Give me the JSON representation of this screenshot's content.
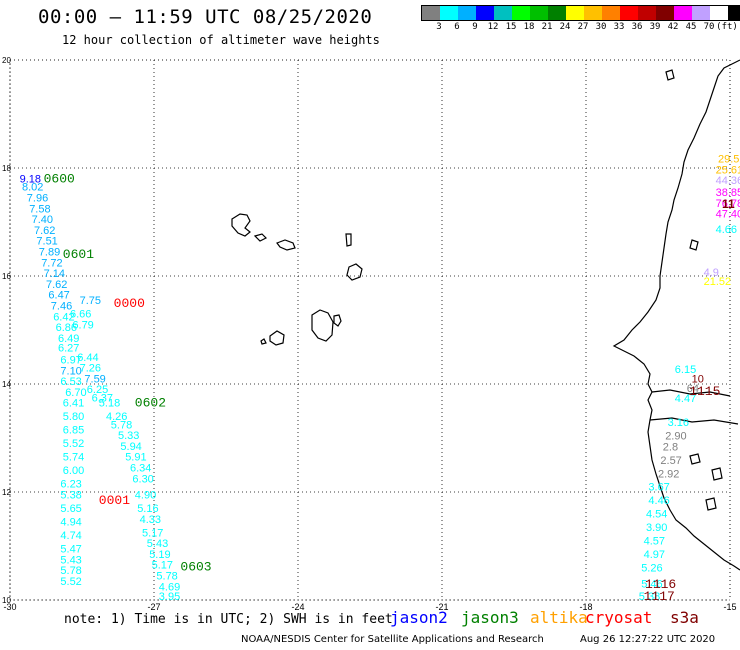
{
  "header": {
    "title": "00:00 – 11:59 UTC 08/25/2020",
    "subtitle": "12 hour collection of altimeter wave heights"
  },
  "legend": {
    "colors": [
      "#808080",
      "#00ffff",
      "#00b0ff",
      "#0000ff",
      "#00c0c0",
      "#00ff00",
      "#00c000",
      "#008000",
      "#ffff00",
      "#ffc000",
      "#ff8000",
      "#ff0000",
      "#c00000",
      "#800000",
      "#ff00ff",
      "#c0a0ff",
      "#ffffff",
      "#000000"
    ],
    "labels": [
      "3",
      "6",
      "9",
      "12",
      "15",
      "18",
      "21",
      "24",
      "27",
      "30",
      "33",
      "36",
      "39",
      "42",
      "45",
      "70",
      "(ft)"
    ]
  },
  "map": {
    "x_ticks": [
      "-30",
      "-27",
      "-24",
      "-21",
      "-18",
      "-15"
    ],
    "y_ticks": [
      "20",
      "18",
      "16",
      "14",
      "12",
      "10"
    ],
    "lon_range": [
      -30,
      -15
    ],
    "lat_range": [
      10,
      20
    ]
  },
  "time_labels": [
    {
      "text": "0600",
      "color": "#008000",
      "lon": -29.3,
      "lat": 17.73
    },
    {
      "text": "0601",
      "color": "#008000",
      "lon": -28.9,
      "lat": 16.33
    },
    {
      "text": "0000",
      "color": "#ff0000",
      "lon": -27.84,
      "lat": 15.43
    },
    {
      "text": "0602",
      "color": "#008000",
      "lon": -27.4,
      "lat": 13.58
    },
    {
      "text": "0001",
      "color": "#ff0000",
      "lon": -28.15,
      "lat": 11.78
    },
    {
      "text": "0603",
      "color": "#008000",
      "lon": -26.45,
      "lat": 10.55
    },
    {
      "text": "1115",
      "color": "#800000",
      "lon": -15.85,
      "lat": 13.8
    },
    {
      "text": "1116",
      "color": "#800000",
      "lon": -16.77,
      "lat": 10.22
    },
    {
      "text": "1117",
      "color": "#800000",
      "lon": -16.8,
      "lat": 10.0
    }
  ],
  "wave_labels": [
    {
      "v": "9.18",
      "c": "#0000ff",
      "lon": -29.8,
      "lat": 17.73
    },
    {
      "v": "8.02",
      "c": "#00b0ff",
      "lon": -29.75,
      "lat": 17.58
    },
    {
      "v": "7.96",
      "c": "#00b0ff",
      "lon": -29.65,
      "lat": 17.38
    },
    {
      "v": "7.58",
      "c": "#00b0ff",
      "lon": -29.6,
      "lat": 17.18
    },
    {
      "v": "7.40",
      "c": "#00b0ff",
      "lon": -29.55,
      "lat": 16.98
    },
    {
      "v": "7.62",
      "c": "#00b0ff",
      "lon": -29.5,
      "lat": 16.78
    },
    {
      "v": "7.51",
      "c": "#00b0ff",
      "lon": -29.45,
      "lat": 16.58
    },
    {
      "v": "7.89",
      "c": "#00b0ff",
      "lon": -29.4,
      "lat": 16.38
    },
    {
      "v": "7.72",
      "c": "#00b0ff",
      "lon": -29.35,
      "lat": 16.18
    },
    {
      "v": "7.14",
      "c": "#00b0ff",
      "lon": -29.3,
      "lat": 15.98
    },
    {
      "v": "7.62",
      "c": "#00b0ff",
      "lon": -29.25,
      "lat": 15.78
    },
    {
      "v": "6.47",
      "c": "#00b0ff",
      "lon": -29.2,
      "lat": 15.58
    },
    {
      "v": "7.75",
      "c": "#00b0ff",
      "lon": -28.55,
      "lat": 15.48
    },
    {
      "v": "7.46",
      "c": "#00b0ff",
      "lon": -29.15,
      "lat": 15.38
    },
    {
      "v": "6.66",
      "c": "#00ffff",
      "lon": -28.75,
      "lat": 15.23
    },
    {
      "v": "6.42",
      "c": "#00ffff",
      "lon": -29.1,
      "lat": 15.18
    },
    {
      "v": "6.79",
      "c": "#00ffff",
      "lon": -28.7,
      "lat": 15.03
    },
    {
      "v": "6.86",
      "c": "#00ffff",
      "lon": -29.05,
      "lat": 14.98
    },
    {
      "v": "6.49",
      "c": "#00ffff",
      "lon": -29.0,
      "lat": 14.78
    },
    {
      "v": "6.27",
      "c": "#00ffff",
      "lon": -29.0,
      "lat": 14.6
    },
    {
      "v": "6.44",
      "c": "#00ffff",
      "lon": -28.6,
      "lat": 14.43
    },
    {
      "v": "6.97",
      "c": "#00ffff",
      "lon": -28.95,
      "lat": 14.38
    },
    {
      "v": "7.10",
      "c": "#00b0ff",
      "lon": -28.95,
      "lat": 14.18
    },
    {
      "v": "7.26",
      "c": "#00ffff",
      "lon": -28.55,
      "lat": 14.23
    },
    {
      "v": "7.59",
      "c": "#00b0ff",
      "lon": -28.45,
      "lat": 14.03
    },
    {
      "v": "6.53",
      "c": "#00ffff",
      "lon": -28.95,
      "lat": 13.98
    },
    {
      "v": "6.25",
      "c": "#00ffff",
      "lon": -28.4,
      "lat": 13.83
    },
    {
      "v": "6.70",
      "c": "#00ffff",
      "lon": -28.85,
      "lat": 13.78
    },
    {
      "v": "6.37",
      "c": "#00ffff",
      "lon": -28.3,
      "lat": 13.68
    },
    {
      "v": "6.41",
      "c": "#00ffff",
      "lon": -28.9,
      "lat": 13.58
    },
    {
      "v": "5.18",
      "c": "#00ffff",
      "lon": -28.15,
      "lat": 13.58
    },
    {
      "v": "5.80",
      "c": "#00ffff",
      "lon": -28.9,
      "lat": 13.33
    },
    {
      "v": "4.26",
      "c": "#00ffff",
      "lon": -28.0,
      "lat": 13.33
    },
    {
      "v": "6.85",
      "c": "#00ffff",
      "lon": -28.9,
      "lat": 13.08
    },
    {
      "v": "5.78",
      "c": "#00ffff",
      "lon": -27.9,
      "lat": 13.18
    },
    {
      "v": "5.33",
      "c": "#00ffff",
      "lon": -27.75,
      "lat": 12.98
    },
    {
      "v": "5.52",
      "c": "#00ffff",
      "lon": -28.9,
      "lat": 12.83
    },
    {
      "v": "5.94",
      "c": "#00ffff",
      "lon": -27.7,
      "lat": 12.78
    },
    {
      "v": "5.74",
      "c": "#00ffff",
      "lon": -28.9,
      "lat": 12.58
    },
    {
      "v": "5.91",
      "c": "#00ffff",
      "lon": -27.6,
      "lat": 12.58
    },
    {
      "v": "6.34",
      "c": "#00ffff",
      "lon": -27.5,
      "lat": 12.38
    },
    {
      "v": "6.00",
      "c": "#00ffff",
      "lon": -28.9,
      "lat": 12.33
    },
    {
      "v": "6.23",
      "c": "#00ffff",
      "lon": -28.95,
      "lat": 12.08
    },
    {
      "v": "6.30",
      "c": "#00ffff",
      "lon": -27.45,
      "lat": 12.18
    },
    {
      "v": "5.38",
      "c": "#00ffff",
      "lon": -28.95,
      "lat": 11.88
    },
    {
      "v": "4.90",
      "c": "#00ffff",
      "lon": -27.4,
      "lat": 11.88
    },
    {
      "v": "5.65",
      "c": "#00ffff",
      "lon": -28.95,
      "lat": 11.63
    },
    {
      "v": "5.16",
      "c": "#00ffff",
      "lon": -27.35,
      "lat": 11.63
    },
    {
      "v": "4.94",
      "c": "#00ffff",
      "lon": -28.95,
      "lat": 11.38
    },
    {
      "v": "4.33",
      "c": "#00ffff",
      "lon": -27.3,
      "lat": 11.43
    },
    {
      "v": "4.74",
      "c": "#00ffff",
      "lon": -28.95,
      "lat": 11.13
    },
    {
      "v": "5.17",
      "c": "#00ffff",
      "lon": -27.25,
      "lat": 11.18
    },
    {
      "v": "5.43",
      "c": "#00ffff",
      "lon": -27.15,
      "lat": 10.98
    },
    {
      "v": "5.47",
      "c": "#00ffff",
      "lon": -28.95,
      "lat": 10.88
    },
    {
      "v": "5.19",
      "c": "#00ffff",
      "lon": -27.1,
      "lat": 10.78
    },
    {
      "v": "5.43",
      "c": "#00ffff",
      "lon": -28.95,
      "lat": 10.68
    },
    {
      "v": "5.17",
      "c": "#00ffff",
      "lon": -27.05,
      "lat": 10.58
    },
    {
      "v": "5.78",
      "c": "#00ffff",
      "lon": -28.95,
      "lat": 10.48
    },
    {
      "v": "5.78",
      "c": "#00ffff",
      "lon": -26.95,
      "lat": 10.38
    },
    {
      "v": "5.52",
      "c": "#00ffff",
      "lon": -28.95,
      "lat": 10.28
    },
    {
      "v": "4.69",
      "c": "#00ffff",
      "lon": -26.9,
      "lat": 10.18
    },
    {
      "v": "3.95",
      "c": "#00ffff",
      "lon": -26.9,
      "lat": 10.0
    },
    {
      "v": "29.52",
      "c": "#ffc000",
      "lon": -15.25,
      "lat": 18.1
    },
    {
      "v": "25.61",
      "c": "#ffc000",
      "lon": -15.3,
      "lat": 17.9
    },
    {
      "v": "44.36",
      "c": "#c0a0ff",
      "lon": -15.3,
      "lat": 17.7
    },
    {
      "v": "38.85",
      "c": "#ff00ff",
      "lon": -15.3,
      "lat": 17.48
    },
    {
      "v": "76.78",
      "c": "#ff00ff",
      "lon": -15.3,
      "lat": 17.28
    },
    {
      "v": "47.40",
      "c": "#ff00ff",
      "lon": -15.3,
      "lat": 17.08
    },
    {
      "v": "4.66",
      "c": "#00ffff",
      "lon": -15.3,
      "lat": 16.8
    },
    {
      "v": "4.9",
      "c": "#c0a0ff",
      "lon": -15.55,
      "lat": 16.0
    },
    {
      "v": "21.52",
      "c": "#ffff00",
      "lon": -15.55,
      "lat": 15.83
    },
    {
      "v": "6.15",
      "c": "#00ffff",
      "lon": -16.15,
      "lat": 14.2
    },
    {
      "v": "10",
      "c": "#800000",
      "lon": -15.8,
      "lat": 14.03
    },
    {
      "v": "64",
      "c": "#808080",
      "lon": -15.9,
      "lat": 13.85
    },
    {
      "v": "4.47",
      "c": "#00ffff",
      "lon": -16.15,
      "lat": 13.67
    },
    {
      "v": "3.16",
      "c": "#00ffff",
      "lon": -16.3,
      "lat": 13.22
    },
    {
      "v": "2.90",
      "c": "#808080",
      "lon": -16.35,
      "lat": 12.97
    },
    {
      "v": "2.8",
      "c": "#808080",
      "lon": -16.4,
      "lat": 12.77
    },
    {
      "v": "2.57",
      "c": "#808080",
      "lon": -16.45,
      "lat": 12.52
    },
    {
      "v": "2.92",
      "c": "#808080",
      "lon": -16.5,
      "lat": 12.27
    },
    {
      "v": "3.67",
      "c": "#00ffff",
      "lon": -16.7,
      "lat": 12.03
    },
    {
      "v": "4.46",
      "c": "#00ffff",
      "lon": -16.7,
      "lat": 11.78
    },
    {
      "v": "4.54",
      "c": "#00ffff",
      "lon": -16.75,
      "lat": 11.53
    },
    {
      "v": "3.90",
      "c": "#00ffff",
      "lon": -16.75,
      "lat": 11.28
    },
    {
      "v": "4.57",
      "c": "#00ffff",
      "lon": -16.8,
      "lat": 11.03
    },
    {
      "v": "4.97",
      "c": "#00ffff",
      "lon": -16.8,
      "lat": 10.78
    },
    {
      "v": "5.26",
      "c": "#00ffff",
      "lon": -16.85,
      "lat": 10.53
    },
    {
      "v": "5.46",
      "c": "#00ffff",
      "lon": -16.85,
      "lat": 10.23
    },
    {
      "v": "5.38",
      "c": "#00ffff",
      "lon": -16.9,
      "lat": 10.0
    }
  ],
  "clipped_labels": [
    {
      "text": "11",
      "color": "#800000"
    }
  ],
  "footer": {
    "note": "note: 1) Time is in UTC; 2) SWH is in feet",
    "satellites": [
      {
        "name": "jason2",
        "color": "#0000ff"
      },
      {
        "name": "jason3",
        "color": "#008000"
      },
      {
        "name": "altika",
        "color": "#ffa000"
      },
      {
        "name": "cryosat",
        "color": "#ff0000"
      },
      {
        "name": "s3a",
        "color": "#800000"
      }
    ],
    "credit": "NOAA/NESDIS Center for Satellite Applications and Research",
    "generated": "Aug 26 12:27:22 UTC 2020"
  }
}
